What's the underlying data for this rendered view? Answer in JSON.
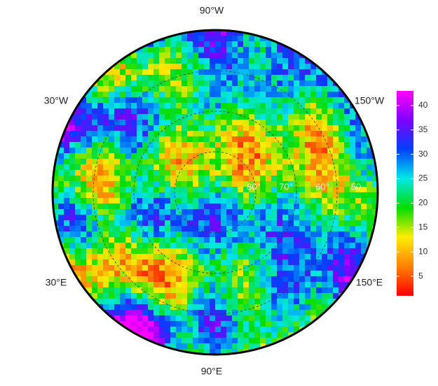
{
  "map": {
    "longitude_labels": [
      "90°W",
      "30°W",
      "150°W",
      "30°E",
      "150°E",
      "90°E"
    ],
    "latitude_labels": [
      "80°",
      "70°",
      "60°",
      "50"
    ],
    "colorbar": {
      "lim": [
        1,
        43
      ],
      "ticks": [
        5,
        10,
        15,
        20,
        25,
        30,
        35,
        40
      ],
      "colors": [
        "#ff0000",
        "#ff8000",
        "#ffee00",
        "#00dd00",
        "#00e8e8",
        "#0040ff",
        "#8000ff",
        "#ff00ff"
      ]
    }
  }
}
